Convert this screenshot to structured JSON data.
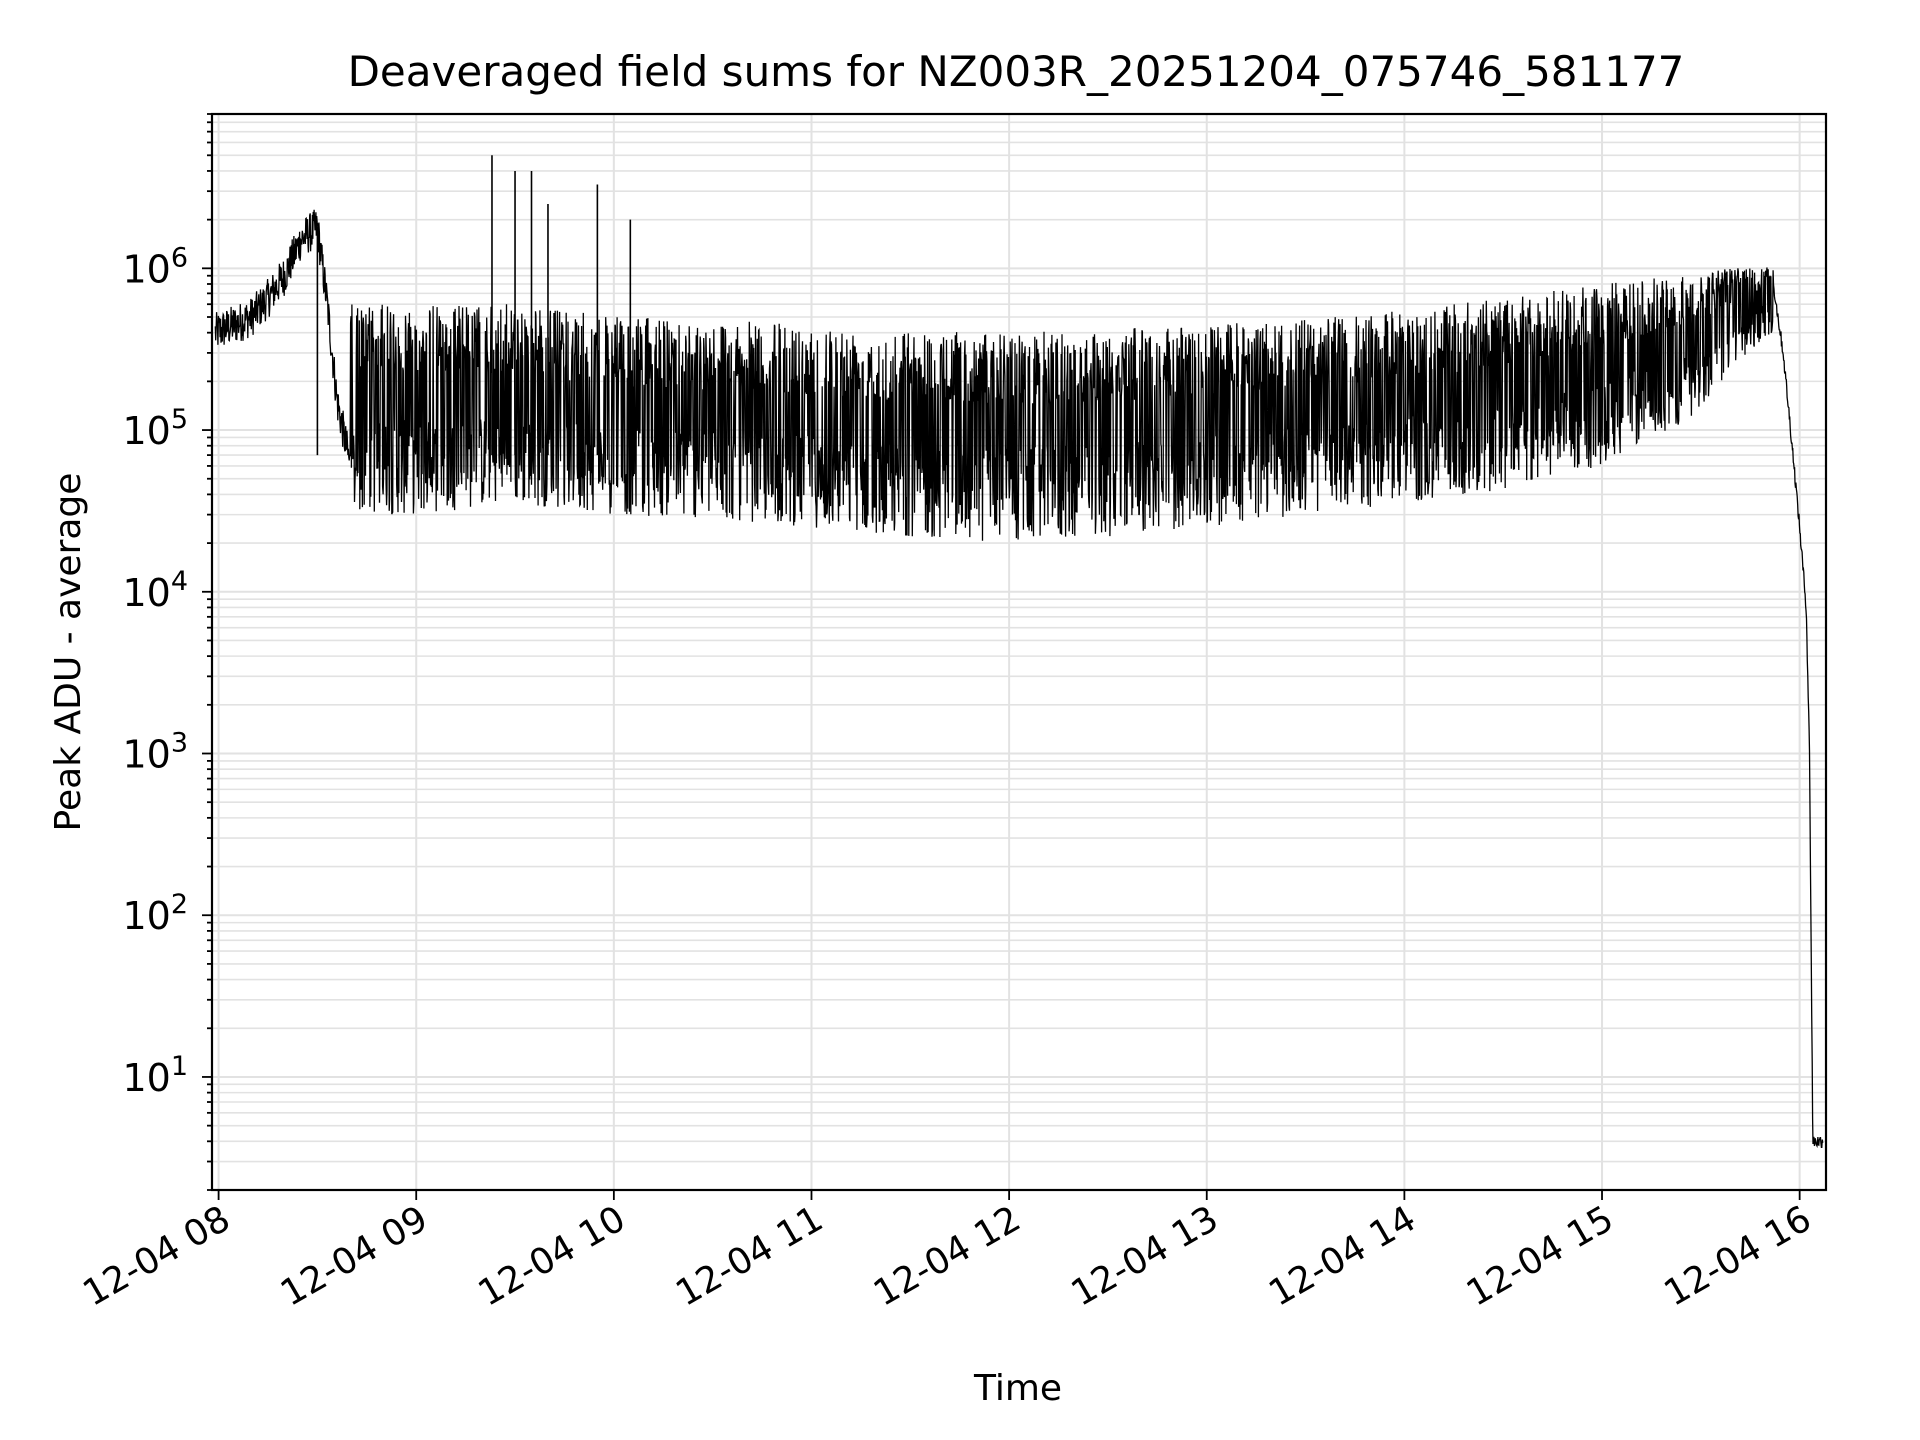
{
  "chart_data": {
    "type": "line",
    "title": "Deaveraged field sums for NZ003R_20251204_075746_581177",
    "xlabel": "Time",
    "ylabel": "Peak ADU - average",
    "yscale": "log",
    "ylim": [
      2,
      9000000
    ],
    "xlim": [
      "2025-12-04 07:58",
      "2025-12-04 16:08"
    ],
    "grid": "on (major and minor)",
    "x_ticks": [
      {
        "value": "2025-12-04 08:00",
        "label": "12-04 08"
      },
      {
        "value": "2025-12-04 09:00",
        "label": "12-04 09"
      },
      {
        "value": "2025-12-04 10:00",
        "label": "12-04 10"
      },
      {
        "value": "2025-12-04 11:00",
        "label": "12-04 11"
      },
      {
        "value": "2025-12-04 12:00",
        "label": "12-04 12"
      },
      {
        "value": "2025-12-04 13:00",
        "label": "12-04 13"
      },
      {
        "value": "2025-12-04 14:00",
        "label": "12-04 14"
      },
      {
        "value": "2025-12-04 15:00",
        "label": "12-04 15"
      },
      {
        "value": "2025-12-04 16:00",
        "label": "12-04 16"
      }
    ],
    "y_ticks": [
      {
        "value": 10,
        "base": "10",
        "exp": "1"
      },
      {
        "value": 100,
        "base": "10",
        "exp": "2"
      },
      {
        "value": 1000,
        "base": "10",
        "exp": "3"
      },
      {
        "value": 10000,
        "base": "10",
        "exp": "4"
      },
      {
        "value": 100000,
        "base": "10",
        "exp": "5"
      },
      {
        "value": 1000000,
        "base": "10",
        "exp": "6"
      }
    ],
    "series": [
      {
        "color": "#000000",
        "points": [
          [
            "2025-12-04 07:59",
            400000
          ],
          [
            "2025-12-04 08:05",
            450000
          ],
          [
            "2025-12-04 08:10",
            500000
          ],
          [
            "2025-12-04 08:15",
            650000
          ],
          [
            "2025-12-04 08:20",
            900000
          ],
          [
            "2025-12-04 08:25",
            1500000
          ],
          [
            "2025-12-04 08:30",
            1800000
          ],
          [
            "2025-12-04 08:33",
            600000
          ],
          [
            "2025-12-04 08:36",
            150000
          ],
          [
            "2025-12-04 08:40",
            60000
          ],
          [
            "2025-12-04 08:50",
            50000
          ],
          [
            "2025-12-04 09:00",
            50000
          ],
          [
            "2025-12-04 09:15",
            60000
          ],
          [
            "2025-12-04 09:23",
            5000000
          ],
          [
            "2025-12-04 09:25",
            60000
          ],
          [
            "2025-12-04 09:30",
            4000000
          ],
          [
            "2025-12-04 09:32",
            70000
          ],
          [
            "2025-12-04 09:35",
            4000000
          ],
          [
            "2025-12-04 09:37",
            80000
          ],
          [
            "2025-12-04 09:40",
            2500000
          ],
          [
            "2025-12-04 09:42",
            60000
          ],
          [
            "2025-12-04 09:55",
            3300000
          ],
          [
            "2025-12-04 09:57",
            50000
          ],
          [
            "2025-12-04 10:05",
            2000000
          ],
          [
            "2025-12-04 10:07",
            50000
          ],
          [
            "2025-12-04 10:30",
            55000
          ],
          [
            "2025-12-04 11:00",
            50000
          ],
          [
            "2025-12-04 11:30",
            45000
          ],
          [
            "2025-12-04 12:00",
            40000
          ],
          [
            "2025-12-04 12:30",
            45000
          ],
          [
            "2025-12-04 13:00",
            55000
          ],
          [
            "2025-12-04 13:30",
            80000
          ],
          [
            "2025-12-04 14:00",
            120000
          ],
          [
            "2025-12-04 14:30",
            220000
          ],
          [
            "2025-12-04 15:00",
            350000
          ],
          [
            "2025-12-04 15:30",
            450000
          ],
          [
            "2025-12-04 15:45",
            900000
          ],
          [
            "2025-12-04 15:52",
            800000
          ],
          [
            "2025-12-04 15:55",
            300000
          ],
          [
            "2025-12-04 15:58",
            70000
          ],
          [
            "2025-12-04 16:00",
            25000
          ],
          [
            "2025-12-04 16:02",
            8000
          ],
          [
            "2025-12-04 16:03",
            1000
          ],
          [
            "2025-12-04 16:04",
            4
          ],
          [
            "2025-12-04 16:07",
            4
          ]
        ],
        "envelope": {
          "description_values": "upper/lower bounds of the dense noisy trace [time, upper, lower]",
          "bounds": [
            [
              "2025-12-04 08:40",
              600000,
              30000
            ],
            [
              "2025-12-04 09:00",
              600000,
              30000
            ],
            [
              "2025-12-04 09:30",
              600000,
              35000
            ],
            [
              "2025-12-04 10:00",
              500000,
              30000
            ],
            [
              "2025-12-04 10:30",
              480000,
              28000
            ],
            [
              "2025-12-04 11:00",
              450000,
              25000
            ],
            [
              "2025-12-04 11:30",
              420000,
              22000
            ],
            [
              "2025-12-04 12:00",
              400000,
              20000
            ],
            [
              "2025-12-04 12:30",
              420000,
              22000
            ],
            [
              "2025-12-04 13:00",
              450000,
              25000
            ],
            [
              "2025-12-04 13:30",
              480000,
              30000
            ],
            [
              "2025-12-04 14:00",
              550000,
              35000
            ],
            [
              "2025-12-04 14:30",
              650000,
              40000
            ],
            [
              "2025-12-04 15:00",
              800000,
              60000
            ],
            [
              "2025-12-04 15:30",
              950000,
              120000
            ],
            [
              "2025-12-04 15:52",
              1100000,
              400000
            ]
          ]
        }
      }
    ]
  }
}
